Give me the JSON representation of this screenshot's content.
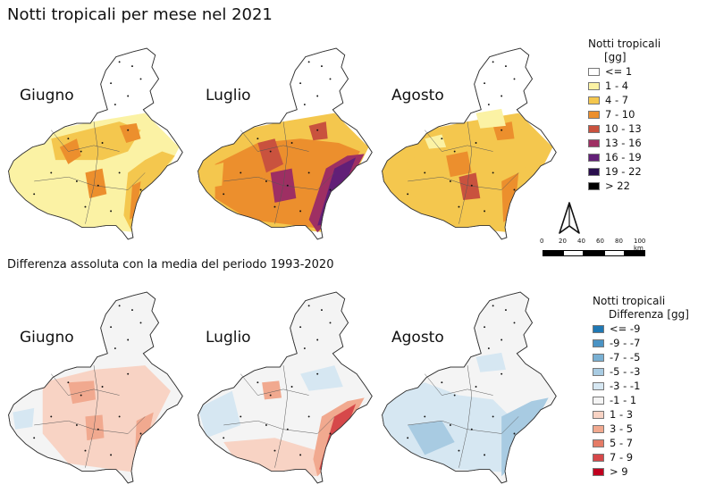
{
  "title": "Notti tropicali per mese nel 2021",
  "subtitle": "Differenza assoluta con la media del periodo 1993-2020",
  "months": [
    "Giugno",
    "Luglio",
    "Agosto"
  ],
  "legend_top": {
    "title_line1": "Notti tropicali",
    "title_line2": "[gg]",
    "items": [
      {
        "label": "<= 1",
        "color": "#ffffff"
      },
      {
        "label": "1 - 4",
        "color": "#fbf2a4"
      },
      {
        "label": "4 - 7",
        "color": "#f4c74e"
      },
      {
        "label": "7 - 10",
        "color": "#ec8f2d"
      },
      {
        "label": "10 - 13",
        "color": "#c9523e"
      },
      {
        "label": "13 - 16",
        "color": "#9e2f63"
      },
      {
        "label": "16 - 19",
        "color": "#621f77"
      },
      {
        "label": "19 - 22",
        "color": "#2a0f4e"
      },
      {
        "label": "> 22",
        "color": "#000000"
      }
    ]
  },
  "legend_bottom": {
    "title_line1": "Notti tropicali",
    "title_line2": "Differenza [gg]",
    "items": [
      {
        "label": "<= -9",
        "color": "#1f78b4"
      },
      {
        "label": "-9 - -7",
        "color": "#4a93c4"
      },
      {
        "label": "-7 - -5",
        "color": "#79b0d3"
      },
      {
        "label": "-5 - -3",
        "color": "#a8cbe2"
      },
      {
        "label": "-3 - -1",
        "color": "#d6e7f2"
      },
      {
        "label": "-1 - 1",
        "color": "#f4f4f4"
      },
      {
        "label": "1 - 3",
        "color": "#f8d3c4"
      },
      {
        "label": "3 - 5",
        "color": "#f1a98f"
      },
      {
        "label": "5 - 7",
        "color": "#e57b66"
      },
      {
        "label": "7 - 9",
        "color": "#d6484a"
      },
      {
        "label": "> 9",
        "color": "#c0001f"
      }
    ]
  },
  "scalebar": {
    "ticks": [
      "0",
      "20",
      "40",
      "60",
      "80",
      "100 km"
    ]
  }
}
